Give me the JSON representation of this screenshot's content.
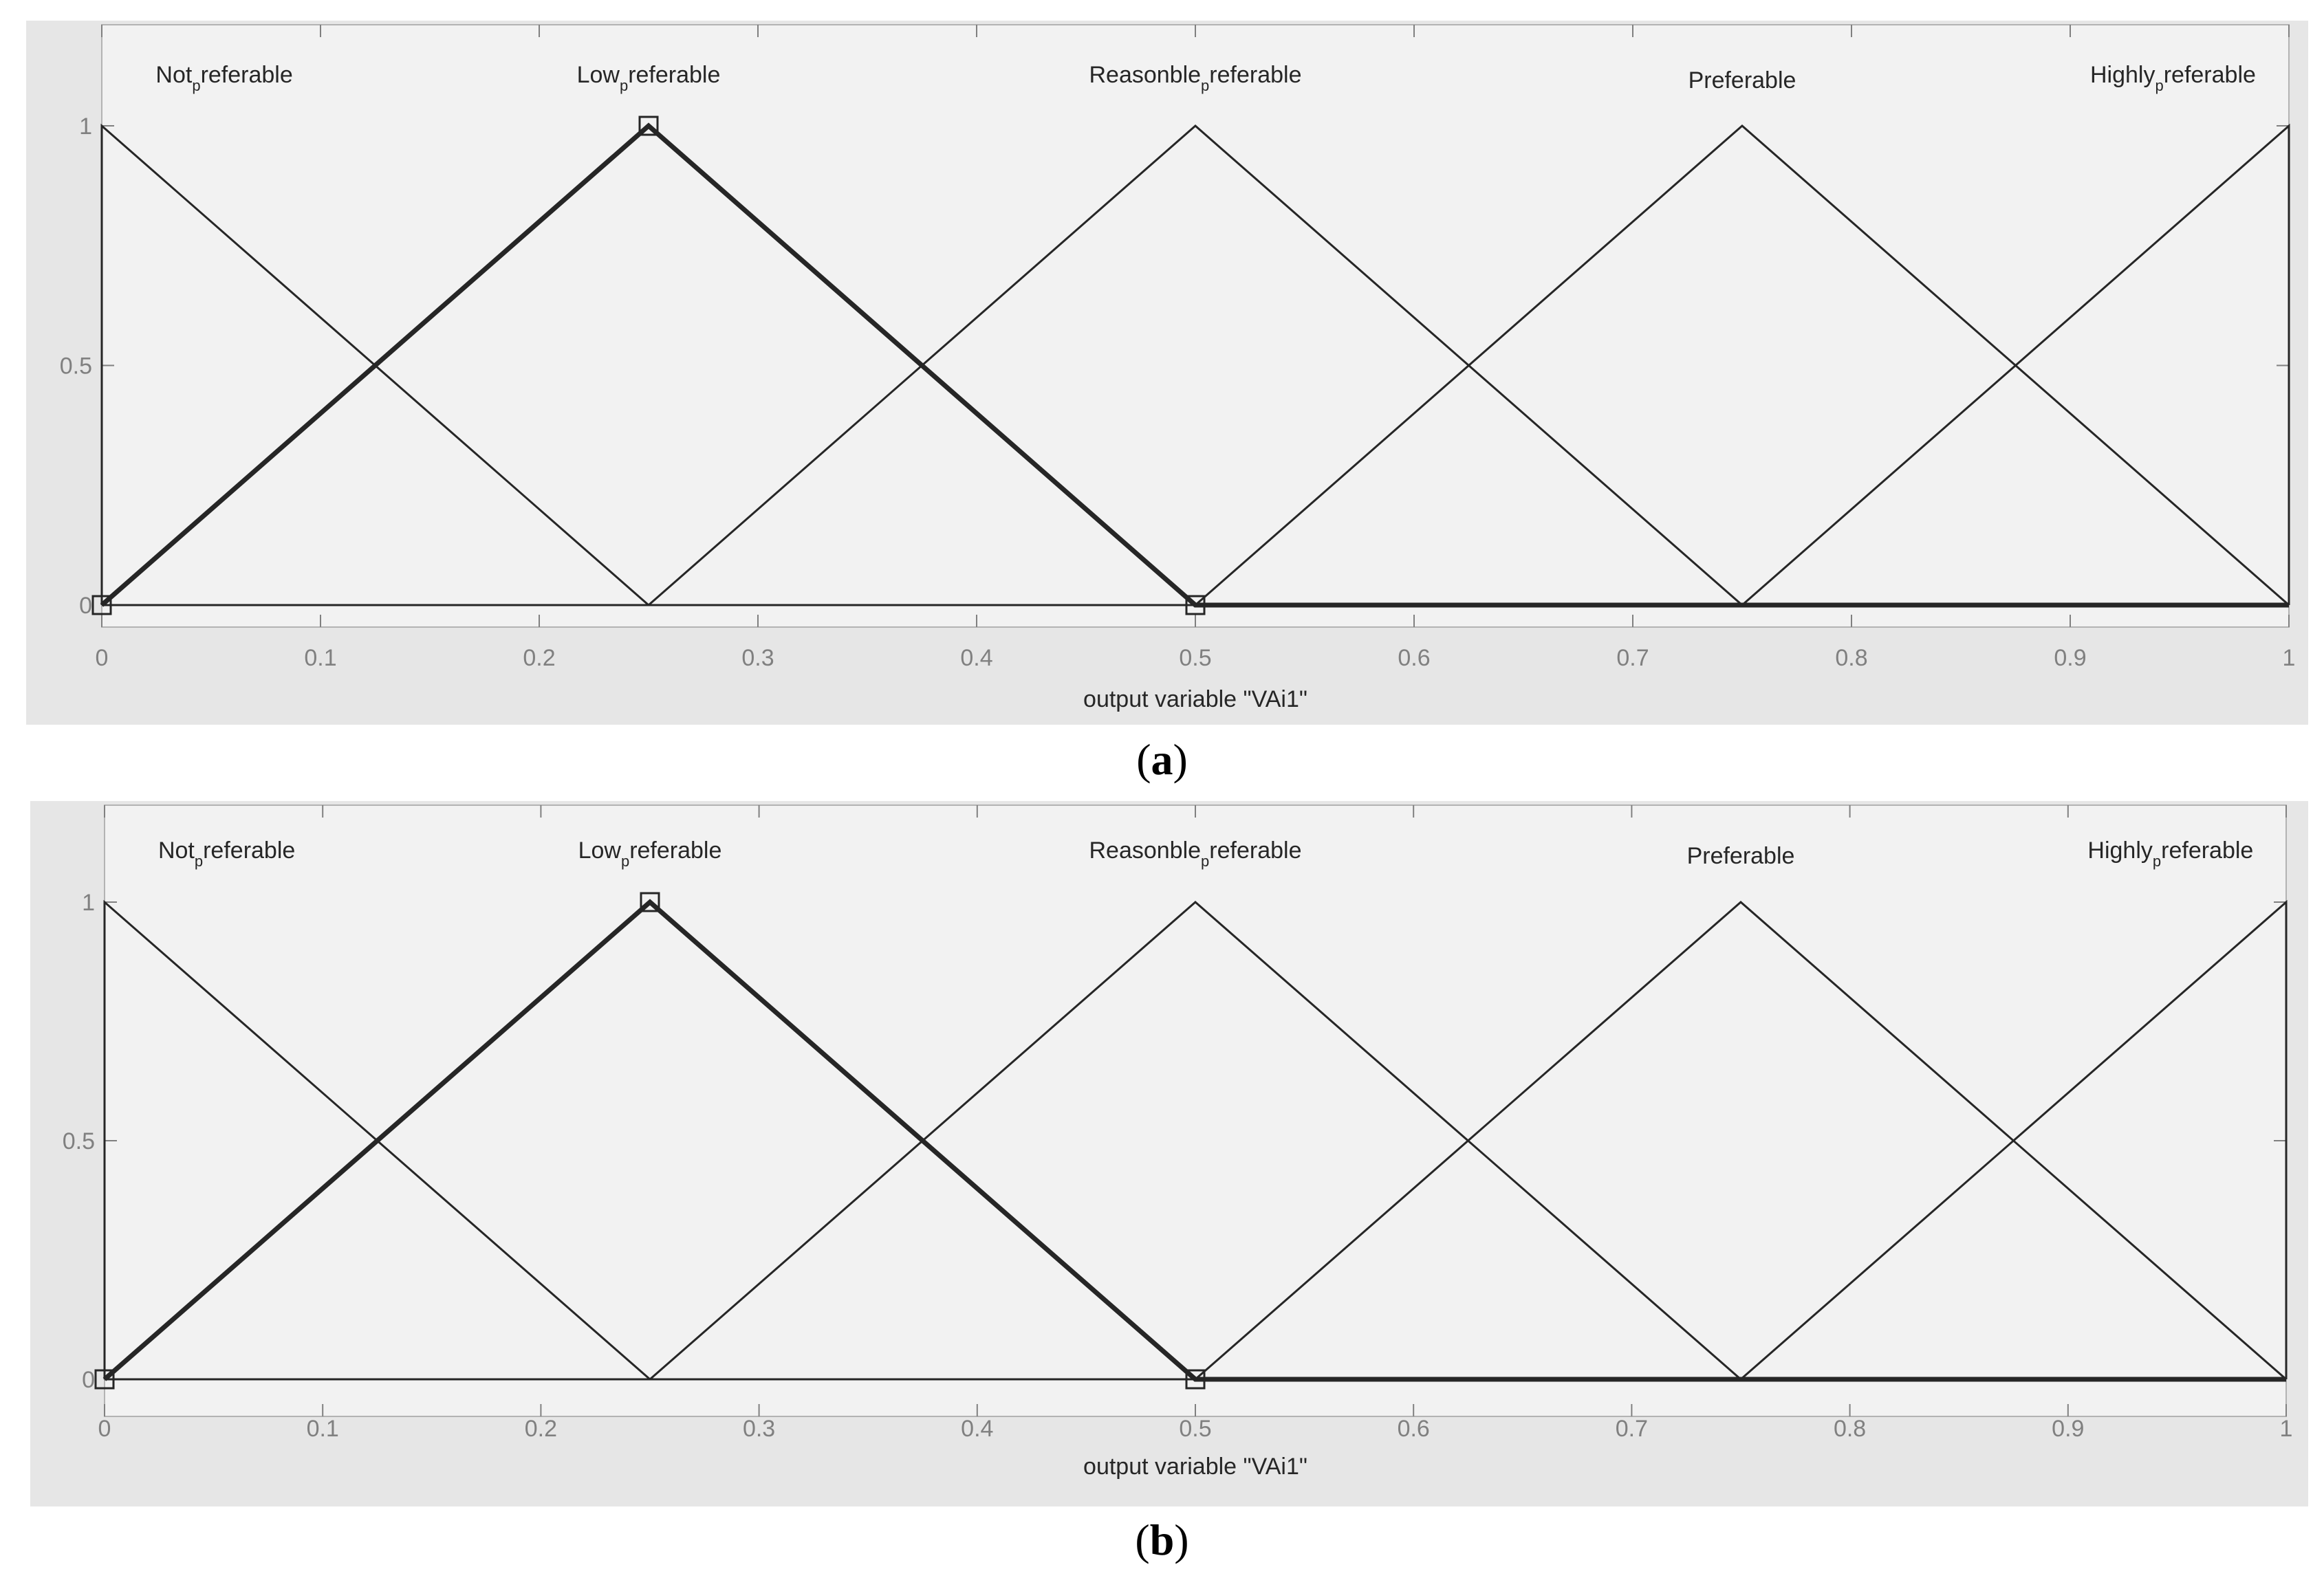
{
  "chart_data": [
    {
      "panel": "a",
      "caption": "a",
      "type": "line",
      "xlabel": "output variable \"VAi1\"",
      "ylabel": "",
      "xlim": [
        0,
        1
      ],
      "ylim": [
        0,
        1
      ],
      "xticks": [
        "0",
        "0.1",
        "0.2",
        "0.3",
        "0.4",
        "0.5",
        "0.6",
        "0.7",
        "0.8",
        "0.9",
        "1"
      ],
      "yticks": [
        "0",
        "0.5",
        "1"
      ],
      "grid": false,
      "selected_series": 1,
      "series": [
        {
          "name": "Not_preferable",
          "label_main": "Not",
          "label_sub": "p",
          "label_rest": "referable",
          "x": [
            0,
            0,
            0.25,
            1
          ],
          "y": [
            0,
            1,
            0,
            0
          ]
        },
        {
          "name": "Low_preferable",
          "label_main": "Low",
          "label_sub": "p",
          "label_rest": "referable",
          "x": [
            0,
            0.25,
            0.5,
            1
          ],
          "y": [
            0,
            1,
            0,
            0
          ]
        },
        {
          "name": "Reasonble_preferable",
          "label_main": "Reasonble",
          "label_sub": "p",
          "label_rest": "referable",
          "x": [
            0,
            0.25,
            0.5,
            0.75,
            1
          ],
          "y": [
            0,
            0,
            1,
            0,
            0
          ]
        },
        {
          "name": "Preferable",
          "label_main": "Preferable",
          "label_sub": "",
          "label_rest": "",
          "x": [
            0,
            0.5,
            0.75,
            1
          ],
          "y": [
            0,
            0,
            1,
            0
          ]
        },
        {
          "name": "Highly_preferable",
          "label_main": "Highly",
          "label_sub": "p",
          "label_rest": "referable",
          "x": [
            0,
            0.75,
            1,
            1
          ],
          "y": [
            0,
            0,
            1,
            0
          ]
        }
      ]
    },
    {
      "panel": "b",
      "caption": "b",
      "type": "line",
      "xlabel": "output variable \"VAi1\"",
      "ylabel": "",
      "xlim": [
        0,
        1
      ],
      "ylim": [
        0,
        1
      ],
      "xticks": [
        "0",
        "0.1",
        "0.2",
        "0.3",
        "0.4",
        "0.5",
        "0.6",
        "0.7",
        "0.8",
        "0.9",
        "1"
      ],
      "yticks": [
        "0",
        "0.5",
        "1"
      ],
      "grid": false,
      "selected_series": 1,
      "series": [
        {
          "name": "Not_preferable",
          "label_main": "Not",
          "label_sub": "p",
          "label_rest": "referable",
          "x": [
            0,
            0,
            0.25,
            1
          ],
          "y": [
            0,
            1,
            0,
            0
          ]
        },
        {
          "name": "Low_preferable",
          "label_main": "Low",
          "label_sub": "p",
          "label_rest": "referable",
          "x": [
            0,
            0.25,
            0.5,
            1
          ],
          "y": [
            0,
            1,
            0,
            0
          ]
        },
        {
          "name": "Reasonble_preferable",
          "label_main": "Reasonble",
          "label_sub": "p",
          "label_rest": "referable",
          "x": [
            0,
            0.25,
            0.5,
            0.75,
            1
          ],
          "y": [
            0,
            0,
            1,
            0,
            0
          ]
        },
        {
          "name": "Preferable",
          "label_main": "Preferable",
          "label_sub": "",
          "label_rest": "",
          "x": [
            0,
            0.5,
            0.75,
            1
          ],
          "y": [
            0,
            0,
            1,
            0
          ]
        },
        {
          "name": "Highly_preferable",
          "label_main": "Highly",
          "label_sub": "p",
          "label_rest": "referable",
          "x": [
            0,
            0.75,
            1,
            1
          ],
          "y": [
            0,
            0,
            1,
            0
          ]
        }
      ]
    }
  ],
  "colors": {
    "figure_background": "#e6e6e6",
    "axes_background": "#f2f2f2",
    "line": "#262626",
    "tick_label": "#808080"
  }
}
